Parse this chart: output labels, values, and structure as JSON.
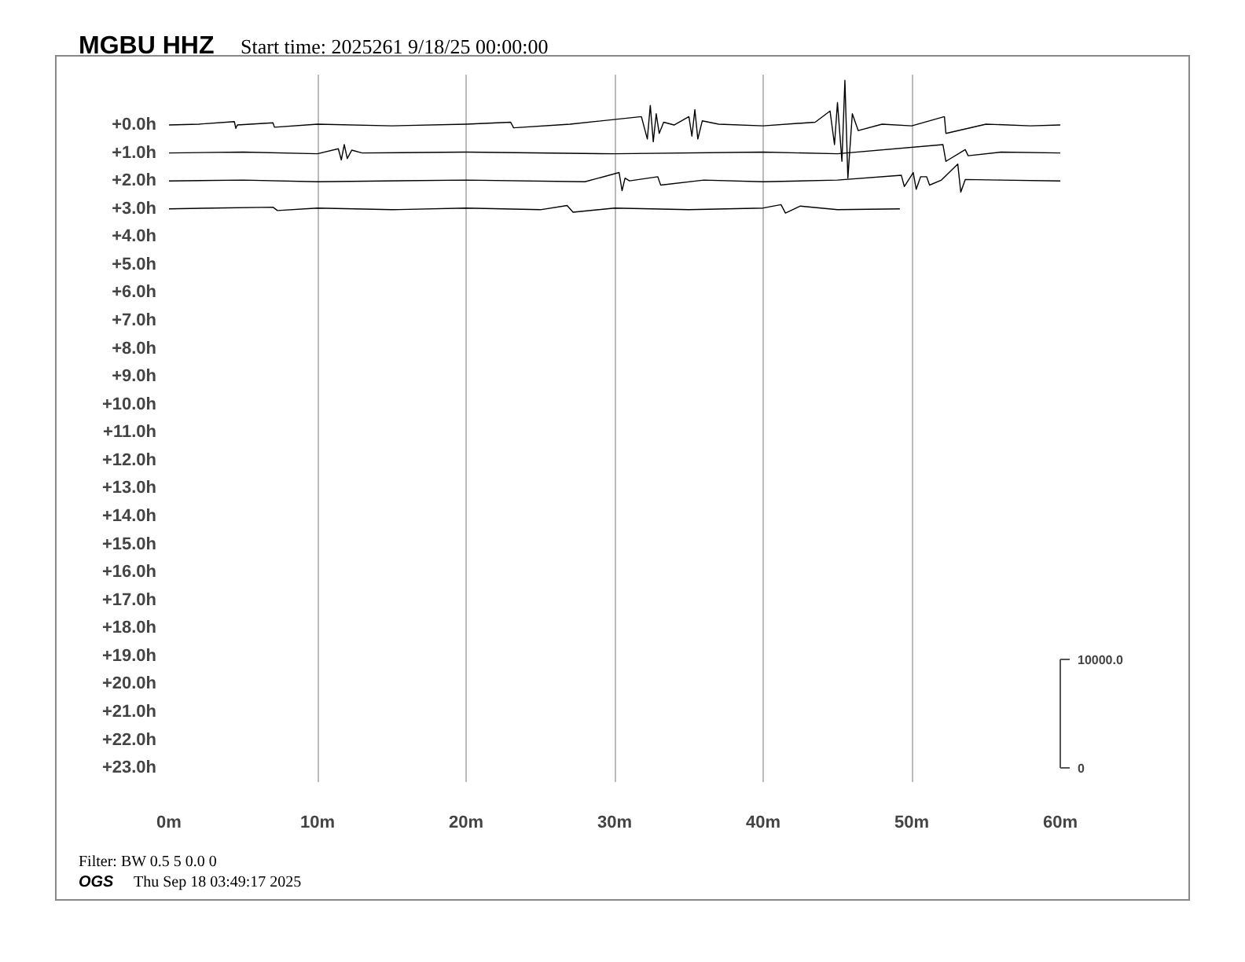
{
  "chart_data": {
    "type": "line",
    "title": "MGBU HHZ",
    "subtitle": "Start time: 2025261  9/18/25 00:00:00",
    "annotations": [
      "Filter: BW 0.5 5 0.0 0",
      "OGS",
      "Thu Sep 18 03:49:17 2025"
    ],
    "xlim": [
      0,
      60
    ],
    "xticks": [
      {
        "value": 0,
        "label": "0m"
      },
      {
        "value": 10,
        "label": "10m"
      },
      {
        "value": 20,
        "label": "20m"
      },
      {
        "value": 30,
        "label": "30m"
      },
      {
        "value": 40,
        "label": "40m"
      },
      {
        "value": 50,
        "label": "50m"
      },
      {
        "value": 60,
        "label": "60m"
      }
    ],
    "ylim": [
      -23.5,
      1.8
    ],
    "yticks": [
      {
        "value": 0,
        "label": "+0.0h"
      },
      {
        "value": -1,
        "label": "+1.0h"
      },
      {
        "value": -2,
        "label": "+2.0h"
      },
      {
        "value": -3,
        "label": "+3.0h"
      },
      {
        "value": -4,
        "label": "+4.0h"
      },
      {
        "value": -5,
        "label": "+5.0h"
      },
      {
        "value": -6,
        "label": "+6.0h"
      },
      {
        "value": -7,
        "label": "+7.0h"
      },
      {
        "value": -8,
        "label": "+8.0h"
      },
      {
        "value": -9,
        "label": "+9.0h"
      },
      {
        "value": -10,
        "label": "+10.0h"
      },
      {
        "value": -11,
        "label": "+11.0h"
      },
      {
        "value": -12,
        "label": "+12.0h"
      },
      {
        "value": -13,
        "label": "+13.0h"
      },
      {
        "value": -14,
        "label": "+14.0h"
      },
      {
        "value": -15,
        "label": "+15.0h"
      },
      {
        "value": -16,
        "label": "+16.0h"
      },
      {
        "value": -17,
        "label": "+17.0h"
      },
      {
        "value": -18,
        "label": "+18.0h"
      },
      {
        "value": -19,
        "label": "+19.0h"
      },
      {
        "value": -20,
        "label": "+20.0h"
      },
      {
        "value": -21,
        "label": "+21.0h"
      },
      {
        "value": -22,
        "label": "+22.0h"
      },
      {
        "value": -23,
        "label": "+23.0h"
      }
    ],
    "y2lim": [
      -1289,
      63910
    ],
    "y2ticks": [
      {
        "value": 0,
        "label": "0"
      },
      {
        "value": 10000,
        "label": "10000.0"
      }
    ],
    "grid": "x",
    "series": [
      {
        "color": "#000000",
        "x": [
          0,
          2,
          4.4,
          4.5,
          4.6,
          7,
          7.1,
          10,
          15,
          20,
          23,
          23.2,
          27,
          31.8,
          32.2,
          32.4,
          32.6,
          32.8,
          33.0,
          33.3,
          34,
          35.0,
          35.2,
          35.4,
          35.6,
          35.9,
          37,
          40,
          43.5,
          44.5,
          44.8,
          45.0,
          45.3,
          45.5,
          45.7,
          46.0,
          46.4,
          48,
          50,
          52.2,
          52.3,
          55,
          58,
          60
        ],
        "values": [
          0,
          0.03,
          0.12,
          -0.12,
          0,
          0.08,
          -0.08,
          0.03,
          -0.03,
          0.03,
          0.1,
          -0.1,
          0.03,
          0.3,
          -0.5,
          0.7,
          -0.6,
          0.4,
          -0.3,
          0.1,
          0,
          0.3,
          -0.4,
          0.55,
          -0.5,
          0.15,
          0.03,
          -0.03,
          0.1,
          0.5,
          -0.7,
          0.8,
          -1.3,
          1.6,
          -1.9,
          0.4,
          -0.2,
          0.03,
          -0.03,
          0.3,
          -0.3,
          0.03,
          -0.03,
          0
        ]
      },
      {
        "color": "#000000",
        "x": [
          0,
          5,
          10,
          11.4,
          11.6,
          11.8,
          12.0,
          12.3,
          13,
          20,
          30,
          40,
          45,
          52.1,
          52.3,
          53.6,
          53.8,
          56,
          60
        ],
        "values": [
          -1,
          -0.97,
          -1.03,
          -0.85,
          -1.25,
          -0.7,
          -1.2,
          -0.9,
          -1,
          -0.97,
          -1.03,
          -0.97,
          -1.03,
          -0.7,
          -1.3,
          -0.88,
          -1.1,
          -0.97,
          -1
        ]
      },
      {
        "color": "#000000",
        "x": [
          0,
          5,
          10,
          20,
          28,
          30.3,
          30.5,
          30.7,
          31,
          32.9,
          33.1,
          36,
          40,
          45,
          49.3,
          49.5,
          50.1,
          50.3,
          50.6,
          51.0,
          51.2,
          52,
          53.1,
          53.3,
          53.6,
          56,
          60
        ],
        "values": [
          -2,
          -1.97,
          -2.03,
          -1.97,
          -2.03,
          -1.7,
          -2.35,
          -1.9,
          -2,
          -1.85,
          -2.15,
          -1.97,
          -2.03,
          -1.97,
          -1.8,
          -2.2,
          -1.7,
          -2.3,
          -1.85,
          -1.85,
          -2.15,
          -1.97,
          -1.4,
          -2.4,
          -1.95,
          -1.97,
          -2
        ]
      },
      {
        "color": "#000000",
        "x": [
          0,
          3,
          7,
          7.3,
          10,
          15,
          20,
          25,
          26.8,
          27.2,
          30,
          35,
          40,
          41.2,
          41.5,
          42.5,
          45,
          49.2
        ],
        "values": [
          -3,
          -2.97,
          -2.94,
          -3.06,
          -2.97,
          -3.03,
          -2.97,
          -3.03,
          -2.88,
          -3.12,
          -2.97,
          -3.03,
          -2.97,
          -2.85,
          -3.15,
          -2.9,
          -3.03,
          -3
        ]
      }
    ]
  }
}
